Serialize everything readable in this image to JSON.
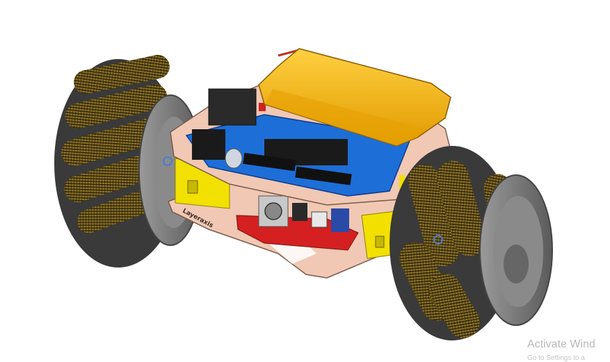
{
  "scene": {
    "subject": "mecanum-wheel-robot-cad-render",
    "board_colors": {
      "plate": "#f0c8b4",
      "controller_board": "#1e6ed8",
      "battery": "#f0b000",
      "motor_bracket": "#f2e000",
      "motor_driver": "#d42020",
      "wheel_hub": "#7a7a7a",
      "rollers": "#7a6420"
    },
    "plate_engraving": "Layeraxis"
  },
  "watermark": {
    "title": "Activate Wind",
    "subtitle": "Go to Settings to a"
  }
}
